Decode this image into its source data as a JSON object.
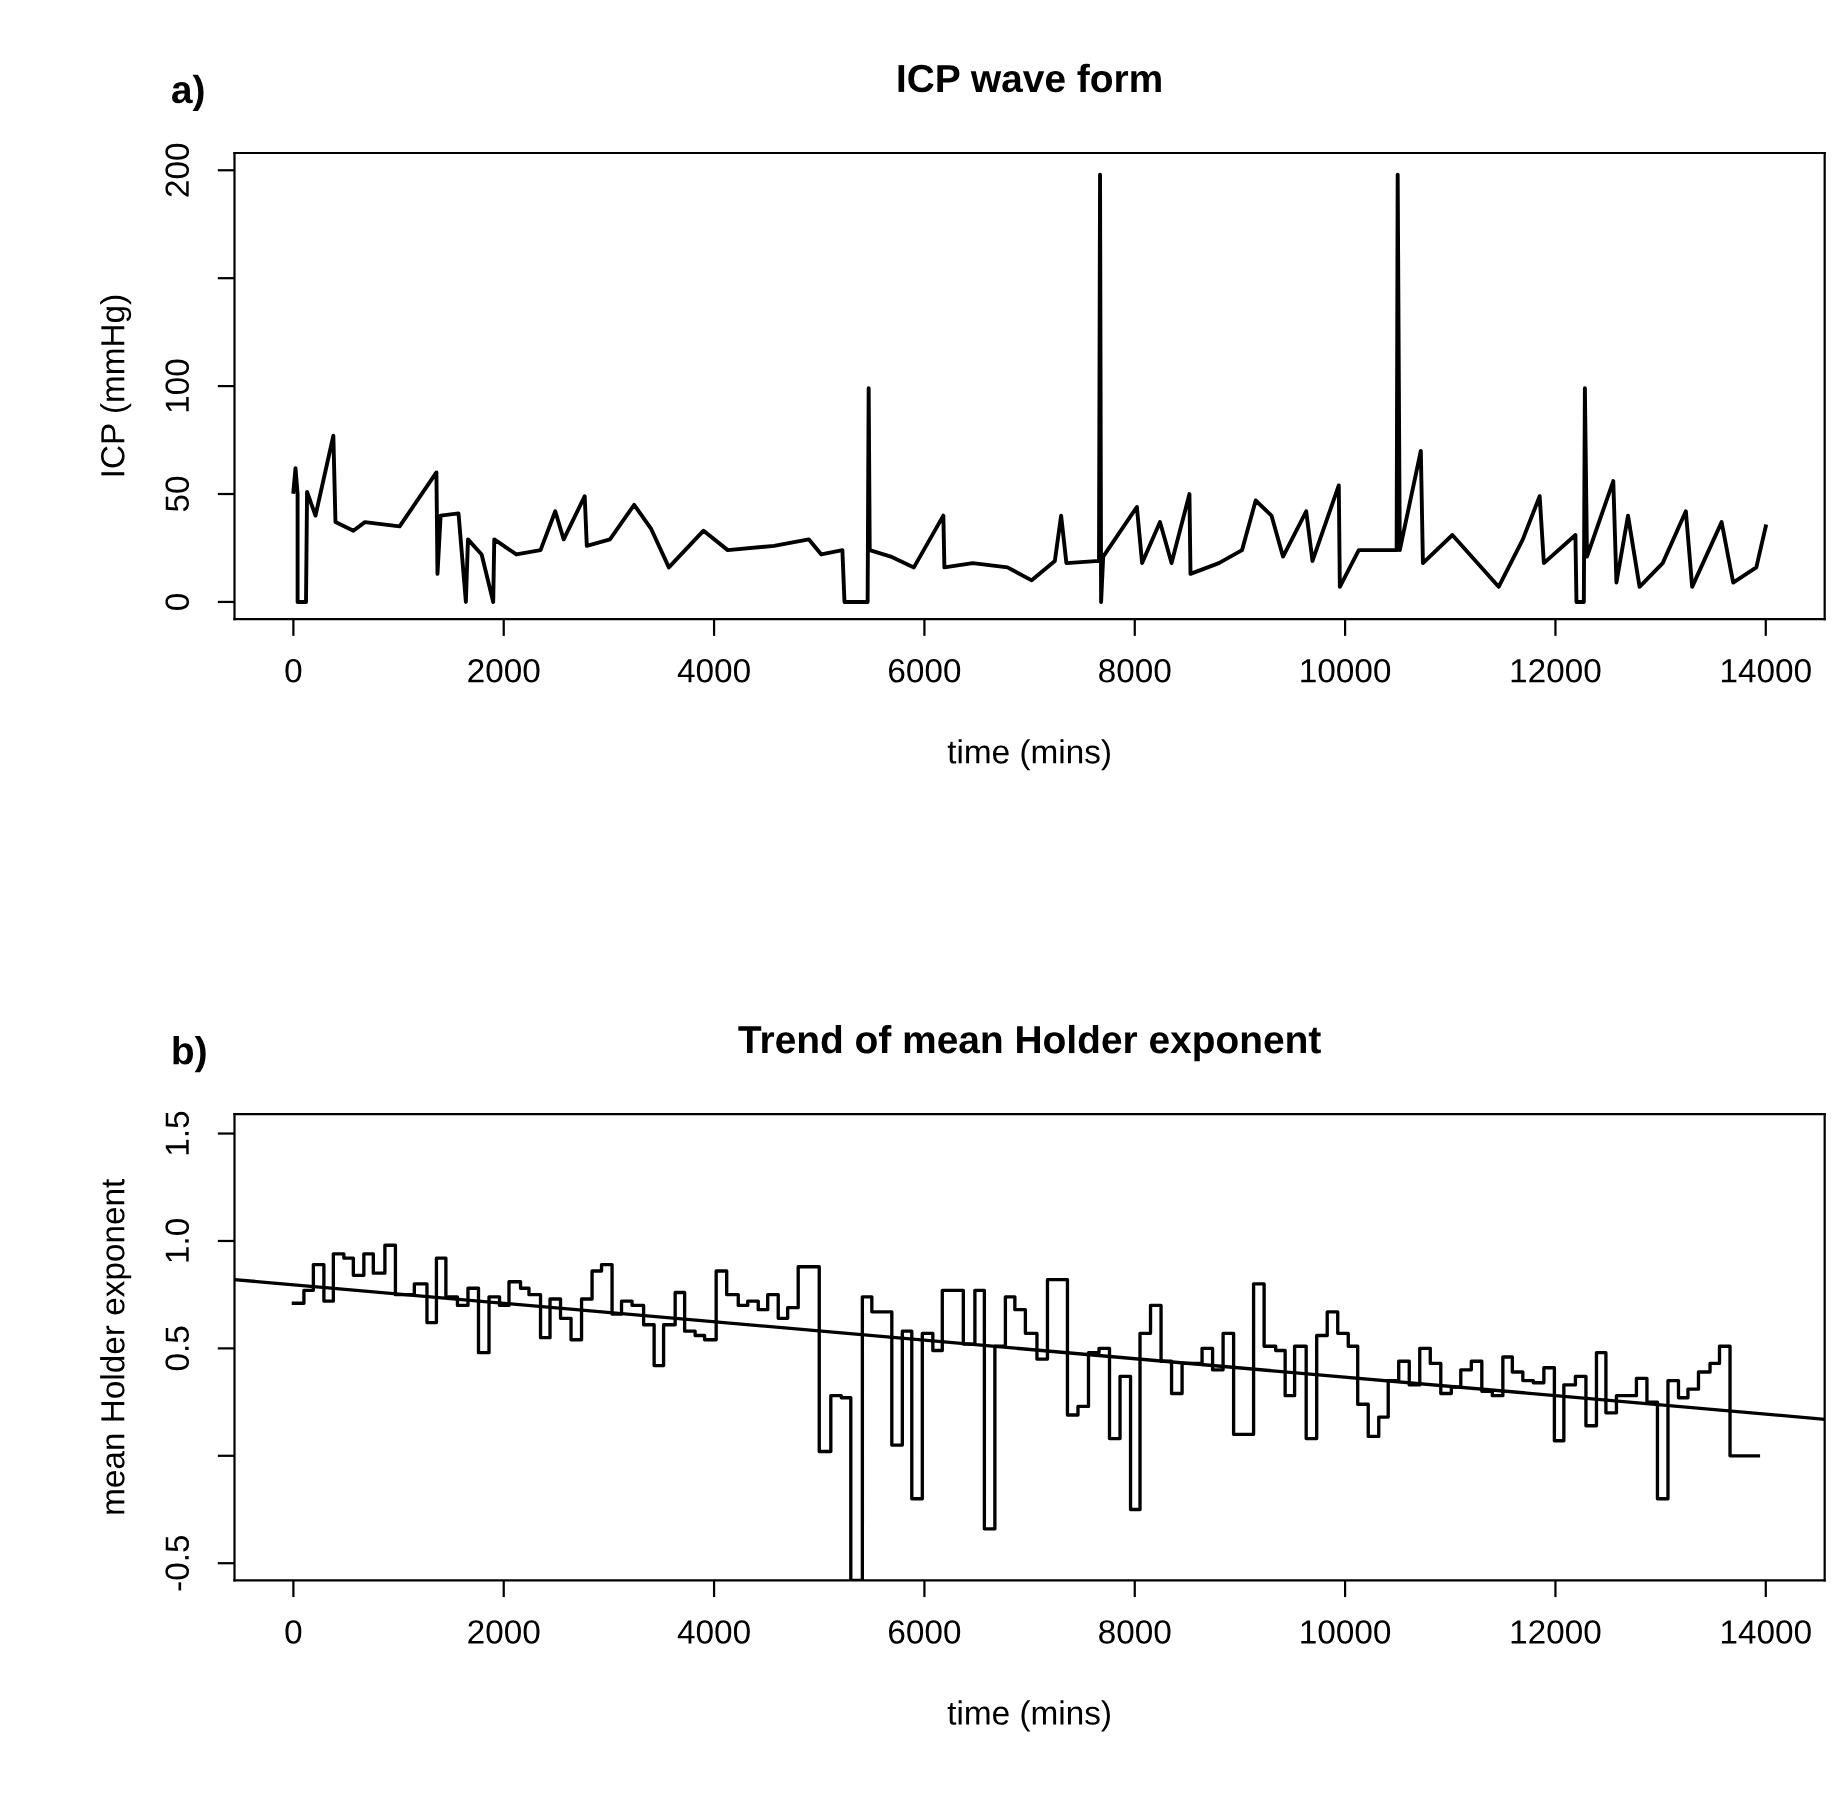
{
  "chart_data": [
    {
      "type": "line",
      "title": "ICP wave form",
      "annotations": [
        "a)"
      ],
      "xlabel": "time (mins)",
      "ylabel": "ICP (mmHg)",
      "xlim": [
        -560,
        14560
      ],
      "ylim": [
        -8,
        208
      ],
      "xticks": [
        0,
        2000,
        4000,
        6000,
        8000,
        10000,
        12000,
        14000
      ],
      "yticks": [
        0,
        50,
        100,
        {
          "value": 150,
          "label": null
        },
        200
      ],
      "grid": false,
      "legend": false,
      "series": [
        {
          "color": "#000000",
          "x": [
            0,
            20,
            40,
            40,
            120,
            130,
            210,
            380,
            400,
            570,
            680,
            1010,
            1360,
            1370,
            1400,
            1570,
            1640,
            1660,
            1790,
            1900,
            1910,
            2120,
            2350,
            2490,
            2570,
            2770,
            2790,
            3010,
            3240,
            3400,
            3570,
            3900,
            4130,
            4570,
            4900,
            5020,
            5220,
            5240,
            5460,
            5470,
            5480,
            5680,
            5900,
            6180,
            6190,
            6460,
            6790,
            7020,
            7240,
            7300,
            7350,
            7660,
            7670,
            7680,
            7700,
            8020,
            8070,
            8240,
            8350,
            8520,
            8530,
            8800,
            9020,
            9150,
            9300,
            9410,
            9630,
            9690,
            9940,
            9950,
            10130,
            10490,
            10500,
            10520,
            10720,
            10740,
            11020,
            11460,
            11690,
            11850,
            11890,
            12190,
            12200,
            12270,
            12280,
            12300,
            12550,
            12580,
            12690,
            12800,
            13020,
            13240,
            13300,
            13580,
            13690,
            13910,
            14000
          ],
          "values": [
            51,
            62,
            50,
            0,
            0,
            51,
            40,
            77,
            37,
            33,
            37,
            35,
            60,
            13,
            40,
            41,
            0,
            29,
            22,
            0,
            29,
            22,
            24,
            42,
            29,
            49,
            26,
            29,
            45,
            34,
            16,
            33,
            24,
            26,
            29,
            22,
            24,
            0,
            0,
            99,
            24,
            21,
            16,
            40,
            16,
            18,
            16,
            10,
            19,
            40,
            18,
            19,
            198,
            0,
            21,
            44,
            18,
            37,
            18,
            50,
            13,
            18,
            24,
            47,
            40,
            21,
            42,
            19,
            54,
            7,
            24,
            24,
            198,
            24,
            70,
            18,
            31,
            7,
            29,
            49,
            18,
            31,
            0,
            0,
            99,
            21,
            56,
            9,
            40,
            7,
            18,
            42,
            7,
            37,
            9,
            16,
            35
          ]
        }
      ]
    },
    {
      "type": "step",
      "title": "Trend of mean Holder exponent",
      "annotations": [
        "b)"
      ],
      "xlabel": "time (mins)",
      "ylabel": "mean Holder exponent",
      "xlim": [
        -560,
        14560
      ],
      "ylim": [
        -0.58,
        1.59
      ],
      "xticks": [
        0,
        2000,
        4000,
        6000,
        8000,
        10000,
        12000,
        14000
      ],
      "yticks": [
        -0.5,
        {
          "value": 0,
          "label": null
        },
        0.5,
        {
          "value": 1.0,
          "label": "1.0"
        },
        1.5
      ],
      "grid": false,
      "legend": false,
      "series": [
        {
          "color": "#000000",
          "x": [
            0,
            100,
            190,
            290,
            380,
            480,
            570,
            670,
            760,
            870,
            970,
            1150,
            1270,
            1360,
            1450,
            1560,
            1660,
            1760,
            1860,
            1960,
            2050,
            2160,
            2240,
            2350,
            2440,
            2540,
            2640,
            2740,
            2840,
            2930,
            3030,
            3120,
            3220,
            3330,
            3430,
            3520,
            3630,
            3720,
            3820,
            3910,
            4020,
            4120,
            4230,
            4320,
            4420,
            4510,
            4610,
            4700,
            4800,
            4890,
            5000,
            5110,
            5210,
            5300,
            5410,
            5500,
            5690,
            5790,
            5880,
            5980,
            6080,
            6170,
            6370,
            6480,
            6570,
            6670,
            6770,
            6860,
            6960,
            7070,
            7170,
            7360,
            7460,
            7560,
            7660,
            7760,
            7860,
            7960,
            8050,
            8150,
            8250,
            8350,
            8450,
            8640,
            8740,
            8840,
            8940,
            9130,
            9230,
            9340,
            9430,
            9520,
            9630,
            9730,
            9830,
            9930,
            10030,
            10120,
            10220,
            10320,
            10410,
            10510,
            10610,
            10710,
            10810,
            10910,
            11010,
            11100,
            11200,
            11300,
            11400,
            11500,
            11590,
            11690,
            11790,
            11890,
            11990,
            12080,
            12190,
            12290,
            12390,
            12480,
            12580,
            12770,
            12870,
            12970,
            13070,
            13170,
            13260,
            13360,
            13470,
            13560,
            13660,
            13930
          ],
          "values": [
            0.71,
            0.77,
            0.89,
            0.72,
            0.94,
            0.92,
            0.84,
            0.94,
            0.85,
            0.98,
            0.75,
            0.8,
            0.62,
            0.92,
            0.74,
            0.7,
            0.78,
            0.48,
            0.74,
            0.7,
            0.81,
            0.78,
            0.75,
            0.55,
            0.73,
            0.64,
            0.54,
            0.73,
            0.86,
            0.89,
            0.66,
            0.72,
            0.7,
            0.61,
            0.42,
            0.61,
            0.76,
            0.58,
            0.56,
            0.54,
            0.86,
            0.75,
            0.7,
            0.72,
            0.68,
            0.75,
            0.64,
            0.69,
            0.88,
            0.88,
            0.02,
            0.28,
            0.27,
            -0.58,
            0.74,
            0.67,
            0.05,
            0.58,
            -0.2,
            0.57,
            0.49,
            0.77,
            0.52,
            0.77,
            -0.34,
            0.51,
            0.74,
            0.68,
            0.57,
            0.45,
            0.82,
            0.19,
            0.23,
            0.48,
            0.5,
            0.08,
            0.37,
            -0.25,
            0.57,
            0.7,
            0.44,
            0.29,
            0.43,
            0.5,
            0.4,
            0.57,
            0.1,
            0.8,
            0.51,
            0.49,
            0.28,
            0.51,
            0.08,
            0.56,
            0.67,
            0.57,
            0.51,
            0.24,
            0.09,
            0.18,
            0.35,
            0.44,
            0.33,
            0.5,
            0.43,
            0.29,
            0.32,
            0.4,
            0.44,
            0.3,
            0.28,
            0.46,
            0.39,
            0.35,
            0.34,
            0.41,
            0.07,
            0.33,
            0.37,
            0.14,
            0.48,
            0.2,
            0.28,
            0.36,
            0.25,
            -0.2,
            0.35,
            0.27,
            0.31,
            0.39,
            0.43,
            0.51,
            0.0,
            0.0
          ]
        },
        {
          "type": "line",
          "color": "#000000",
          "x": [
            -560,
            14560
          ],
          "values": [
            0.82,
            0.17
          ]
        }
      ]
    }
  ]
}
